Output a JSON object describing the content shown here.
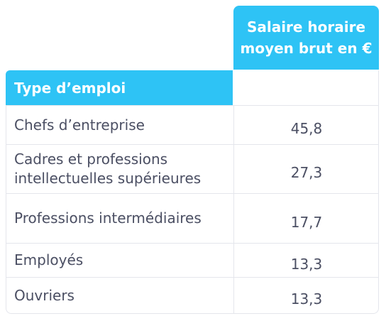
{
  "table": {
    "header_value": "Salaire horaire moyen brut en €",
    "header_type": "Type d’emploi",
    "rows": [
      {
        "label": "Chefs d’entreprise",
        "value": "45,8"
      },
      {
        "label": "Cadres et professions intellectuelles supérieures",
        "value": "27,3"
      },
      {
        "label": "Professions intermédiaires",
        "value": "17,7"
      },
      {
        "label": "Employés",
        "value": "13,3"
      },
      {
        "label": "Ouvriers",
        "value": "13,3"
      }
    ]
  },
  "colors": {
    "header_bg": "#2ec3f5",
    "text": "#4b4f63",
    "border": "#e4e6ec"
  }
}
